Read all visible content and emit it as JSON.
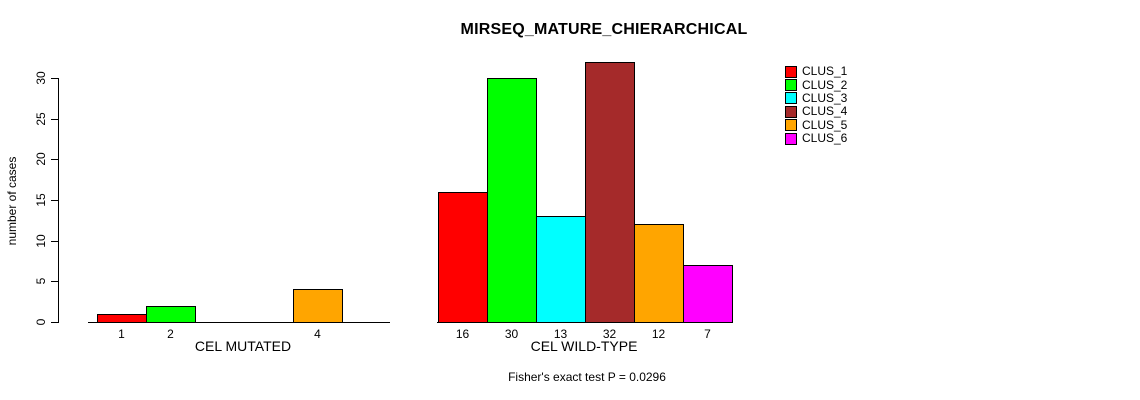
{
  "title": "MIRSEQ_MATURE_CHIERARCHICAL",
  "footnote": "Fisher's exact test P = 0.0296",
  "ylabel": "number of cases",
  "p_value": "0.0296",
  "legend": {
    "position": "right",
    "items": [
      {
        "label": "CLUS_1",
        "color": "#FF0000"
      },
      {
        "label": "CLUS_2",
        "color": "#00FF00"
      },
      {
        "label": "CLUS_3",
        "color": "#00FFFF"
      },
      {
        "label": "CLUS_4",
        "color": "#A52A2A"
      },
      {
        "label": "CLUS_5",
        "color": "#FFA500"
      },
      {
        "label": "CLUS_6",
        "color": "#FF00FF"
      }
    ]
  },
  "chart_data": [
    {
      "type": "bar",
      "title": "MIRSEQ_MATURE_CHIERARCHICAL",
      "xlabel": "CEL MUTATED",
      "ylabel": "number of cases",
      "categories": [
        "CLUS_1",
        "CLUS_2",
        "CLUS_3",
        "CLUS_4",
        "CLUS_5",
        "CLUS_6"
      ],
      "values": [
        1,
        2,
        0,
        0,
        4,
        0
      ],
      "bar_labels": [
        "1",
        "2",
        "",
        "",
        "4",
        ""
      ],
      "colors": [
        "#FF0000",
        "#00FF00",
        "#00FFFF",
        "#A52A2A",
        "#FFA500",
        "#FF00FF"
      ],
      "ylim": [
        0,
        30
      ],
      "yticks": [
        0,
        5,
        10,
        15,
        20,
        25,
        30
      ],
      "grid": false,
      "legend_position": "right"
    },
    {
      "type": "bar",
      "title": "MIRSEQ_MATURE_CHIERARCHICAL",
      "xlabel": "CEL WILD-TYPE",
      "ylabel": "number of cases",
      "categories": [
        "CLUS_1",
        "CLUS_2",
        "CLUS_3",
        "CLUS_4",
        "CLUS_5",
        "CLUS_6"
      ],
      "values": [
        16,
        30,
        13,
        32,
        12,
        7
      ],
      "bar_labels": [
        "16",
        "30",
        "13",
        "32",
        "12",
        "7"
      ],
      "colors": [
        "#FF0000",
        "#00FF00",
        "#00FFFF",
        "#A52A2A",
        "#FFA500",
        "#FF00FF"
      ],
      "ylim": [
        0,
        30
      ],
      "yticks": [
        0,
        5,
        10,
        15,
        20,
        25,
        30
      ],
      "grid": false,
      "legend_position": "right"
    }
  ]
}
